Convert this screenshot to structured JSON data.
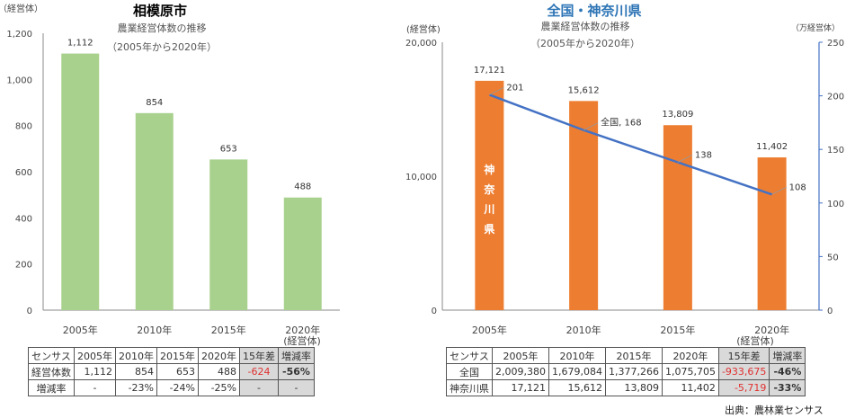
{
  "chart_data": [
    {
      "type": "bar",
      "title": "相模原市",
      "subtitle_lines": [
        "農業経営体数の推移",
        "（2005年から2020年）"
      ],
      "unit_label": "（経営体）",
      "categories": [
        "2005年",
        "2010年",
        "2015年",
        "2020年"
      ],
      "values": [
        1112,
        854,
        653,
        488
      ],
      "value_labels": [
        "1,112",
        "854",
        "653",
        "488"
      ],
      "ylim": [
        0,
        1200
      ],
      "yticks": [
        "0",
        "200",
        "400",
        "600",
        "800",
        "1,000",
        "1,200"
      ],
      "last_category_note": "(経営体)",
      "bar_color": "#a9d18e",
      "grid": false
    },
    {
      "type": "bar+line",
      "title": "全国・神奈川県",
      "subtitle_lines": [
        "農業経営体数の推移",
        "（2005年から2020年）"
      ],
      "left_unit_label": "(経営体)",
      "right_unit_label": "（万経営体）",
      "categories": [
        "2005年",
        "2010年",
        "2015年",
        "2020年"
      ],
      "last_category_note": "(経営体)",
      "series": [
        {
          "name": "神奈川県",
          "kind": "bar",
          "axis": "left",
          "values": [
            17121,
            15612,
            13809,
            11402
          ],
          "value_labels": [
            "17,121",
            "15,612",
            "13,809",
            "11,402"
          ],
          "color": "#ed7d31"
        },
        {
          "name": "全国",
          "kind": "line",
          "axis": "right",
          "values": [
            201,
            168,
            138,
            108
          ],
          "value_labels": [
            "201",
            "全国, 168",
            "138",
            "108"
          ],
          "color": "#4472c4"
        }
      ],
      "left_ylim": [
        0,
        20000
      ],
      "left_yticks": [
        "0",
        "10,000",
        "20,000"
      ],
      "right_ylim": [
        0,
        250
      ],
      "right_yticks": [
        "0",
        "50",
        "100",
        "150",
        "200",
        "250"
      ],
      "bar_inner_label": [
        "神",
        "奈",
        "川",
        "県"
      ],
      "grid": false
    }
  ],
  "table_left": {
    "header": [
      "センサス",
      "2005年",
      "2010年",
      "2015年",
      "2020年",
      "15年差",
      "増減率"
    ],
    "rows": [
      [
        "経営体数",
        "1,112",
        "854",
        "653",
        "488",
        "-624",
        "-56%"
      ],
      [
        "増減率",
        "-",
        "-23%",
        "-24%",
        "-25%",
        "-",
        "-"
      ]
    ]
  },
  "table_right": {
    "header": [
      "センサス",
      "2005年",
      "2010年",
      "2015年",
      "2020年",
      "15年差",
      "増減率"
    ],
    "rows": [
      [
        "全国",
        "2,009,380",
        "1,679,084",
        "1,377,266",
        "1,075,705",
        "-933,675",
        "-46%"
      ],
      [
        "神奈川県",
        "17,121",
        "15,612",
        "13,809",
        "11,402",
        "-5,719",
        "-33%"
      ]
    ]
  },
  "source": "出典：農林業センサス",
  "colors": {
    "left_title": "#000000",
    "right_title": "#2e75b6",
    "axis": "#888888",
    "text": "#444444",
    "negative": "#e03030",
    "shaded_cell": "#d9d9d9"
  }
}
